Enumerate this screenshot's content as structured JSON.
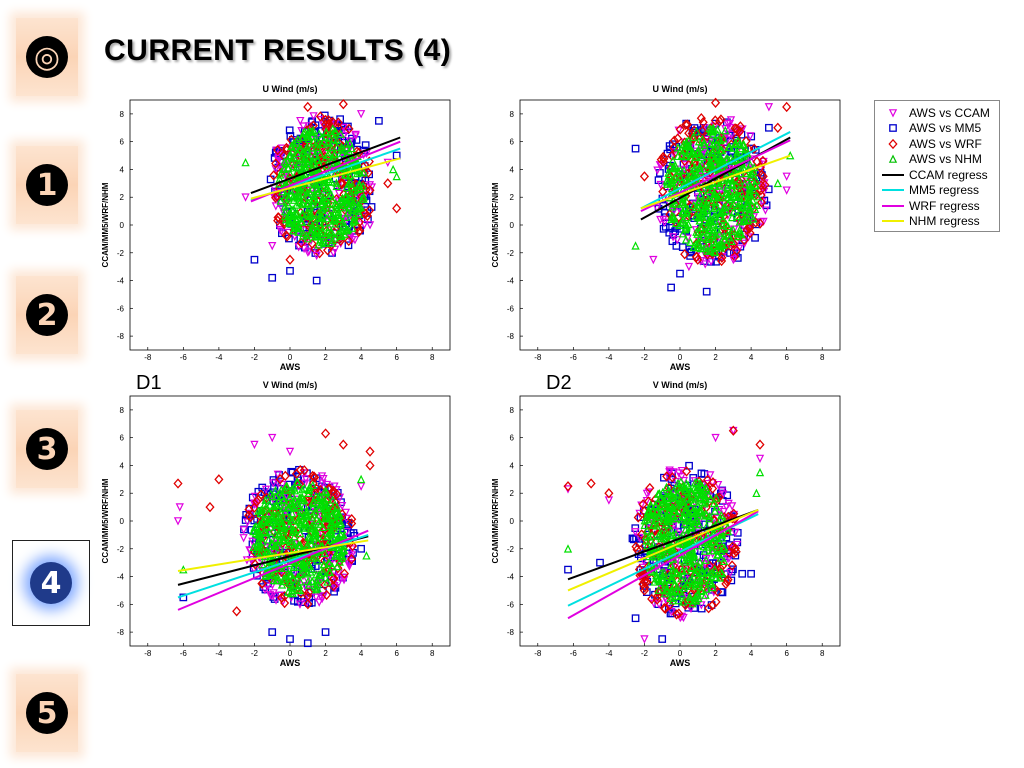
{
  "slide": {
    "title": "CURRENT RESULTS (4)",
    "nav": [
      {
        "symbol": "◎",
        "icon": "target-icon"
      },
      {
        "symbol": "1",
        "icon": "number-one-icon"
      },
      {
        "symbol": "2",
        "icon": "number-two-icon"
      },
      {
        "symbol": "3",
        "icon": "number-three-icon"
      },
      {
        "symbol": "4",
        "icon": "number-four-icon",
        "active": true
      },
      {
        "symbol": "5",
        "icon": "number-five-icon"
      }
    ],
    "panel_labels": [
      "D1",
      "D2"
    ]
  },
  "colors": {
    "ccam": "#e000e0",
    "mm5": "#0000cc",
    "wrf": "#e00000",
    "nhm": "#00e000",
    "ccam_regress": "#000000",
    "mm5_regress": "#00e0e0",
    "wrf_regress": "#e000e0",
    "nhm_regress": "#f0f000"
  },
  "legend": {
    "entries": [
      {
        "label": "AWS vs CCAM",
        "marker": "triangle-down",
        "color": "#e000e0"
      },
      {
        "label": "AWS vs MM5",
        "marker": "square",
        "color": "#0000cc"
      },
      {
        "label": "AWS vs WRF",
        "marker": "diamond",
        "color": "#e00000"
      },
      {
        "label": "AWS vs NHM",
        "marker": "triangle-up",
        "color": "#00c000"
      },
      {
        "label": "CCAM regress",
        "marker": "line",
        "color": "#000000"
      },
      {
        "label": "MM5 regress",
        "marker": "line",
        "color": "#00e0e0"
      },
      {
        "label": "WRF regress",
        "marker": "line",
        "color": "#e000e0"
      },
      {
        "label": "NHM regress",
        "marker": "line",
        "color": "#f0f000"
      }
    ]
  },
  "chart_data": [
    {
      "type": "scatter",
      "title": "U Wind (m/s)",
      "xlabel": "AWS",
      "ylabel": "CCAM/MM5/WRF/NHM",
      "xlim": [
        -9,
        9
      ],
      "ylim": [
        -9,
        9
      ],
      "xticks": [
        -8,
        -6,
        -4,
        -2,
        0,
        2,
        4,
        6,
        8
      ],
      "yticks": [
        -8,
        -6,
        -4,
        -2,
        0,
        2,
        4,
        6,
        8
      ],
      "cloud": {
        "cx": 1.8,
        "cy": 2.8,
        "rx": 3.0,
        "ry": 5.2
      },
      "series": [
        {
          "name": "AWS vs CCAM",
          "points": [
            [
              -2.5,
              2.0
            ],
            [
              -1.0,
              -1.5
            ],
            [
              1.5,
              -2.2
            ],
            [
              4.5,
              0.0
            ],
            [
              5.5,
              4.5
            ],
            [
              4.0,
              8.0
            ]
          ]
        },
        {
          "name": "AWS vs MM5",
          "points": [
            [
              -1,
              -3.8
            ],
            [
              0,
              -3.3
            ],
            [
              1.5,
              -4.0
            ],
            [
              -2,
              -2.5
            ],
            [
              6,
              5.0
            ],
            [
              5,
              7.5
            ]
          ]
        },
        {
          "name": "AWS vs WRF",
          "points": [
            [
              6,
              1.2
            ],
            [
              5.5,
              3.0
            ],
            [
              4.5,
              2.5
            ],
            [
              1,
              8.5
            ],
            [
              3,
              8.7
            ],
            [
              0,
              -2.5
            ]
          ]
        },
        {
          "name": "AWS vs NHM",
          "points": [
            [
              -2.5,
              4.5
            ],
            [
              5.8,
              4.0
            ],
            [
              6,
              3.5
            ]
          ]
        }
      ],
      "regress": [
        {
          "name": "CCAM regress",
          "x": [
            -2.2,
            6.2
          ],
          "y": [
            2.3,
            6.3
          ]
        },
        {
          "name": "MM5 regress",
          "x": [
            -2.2,
            6.2
          ],
          "y": [
            1.8,
            5.5
          ]
        },
        {
          "name": "WRF regress",
          "x": [
            -2.2,
            6.2
          ],
          "y": [
            1.7,
            6.0
          ]
        },
        {
          "name": "NHM regress",
          "x": [
            -2.2,
            6.2
          ],
          "y": [
            1.9,
            4.8
          ]
        }
      ]
    },
    {
      "type": "scatter",
      "title": "U Wind (m/s)",
      "xlabel": "AWS",
      "ylabel": "CCAM/MM5/WRF/NHM",
      "xlim": [
        -9,
        9
      ],
      "ylim": [
        -9,
        9
      ],
      "xticks": [
        -8,
        -6,
        -4,
        -2,
        0,
        2,
        4,
        6,
        8
      ],
      "yticks": [
        -8,
        -6,
        -4,
        -2,
        0,
        2,
        4,
        6,
        8
      ],
      "cloud": {
        "cx": 1.8,
        "cy": 2.5,
        "rx": 3.2,
        "ry": 5.5
      },
      "series": [
        {
          "name": "AWS vs CCAM",
          "points": [
            [
              -1.5,
              -2.5
            ],
            [
              0.5,
              -3.0
            ],
            [
              3,
              -2.5
            ],
            [
              6,
              3.5
            ],
            [
              6,
              2.5
            ],
            [
              5,
              8.5
            ]
          ]
        },
        {
          "name": "AWS vs MM5",
          "points": [
            [
              -0.5,
              -4.5
            ],
            [
              1.5,
              -4.8
            ],
            [
              -2.5,
              5.5
            ],
            [
              5,
              7.0
            ],
            [
              0,
              -3.5
            ]
          ]
        },
        {
          "name": "AWS vs WRF",
          "points": [
            [
              6,
              8.5
            ],
            [
              5.5,
              7.0
            ],
            [
              2,
              8.8
            ],
            [
              -2,
              3.5
            ],
            [
              1,
              -2.5
            ]
          ]
        },
        {
          "name": "AWS vs NHM",
          "points": [
            [
              -2.5,
              -1.5
            ],
            [
              6.2,
              5.0
            ],
            [
              5.5,
              3.0
            ]
          ]
        }
      ],
      "regress": [
        {
          "name": "CCAM regress",
          "x": [
            -2.2,
            6.2
          ],
          "y": [
            0.4,
            6.3
          ]
        },
        {
          "name": "MM5 regress",
          "x": [
            -2.2,
            6.2
          ],
          "y": [
            1.2,
            6.7
          ]
        },
        {
          "name": "WRF regress",
          "x": [
            -2.2,
            6.2
          ],
          "y": [
            1.0,
            6.1
          ]
        },
        {
          "name": "NHM regress",
          "x": [
            -2.2,
            6.2
          ],
          "y": [
            1.2,
            5.0
          ]
        }
      ]
    },
    {
      "type": "scatter",
      "title": "V Wind (m/s)",
      "xlabel": "AWS",
      "ylabel": "CCAM/MM5/WRF/NHM",
      "xlim": [
        -9,
        9
      ],
      "ylim": [
        -9,
        9
      ],
      "xticks": [
        -8,
        -6,
        -4,
        -2,
        0,
        2,
        4,
        6,
        8
      ],
      "yticks": [
        -8,
        -6,
        -4,
        -2,
        0,
        2,
        4,
        6,
        8
      ],
      "cloud": {
        "cx": 0.5,
        "cy": -1.2,
        "rx": 3.2,
        "ry": 5.0
      },
      "series": [
        {
          "name": "AWS vs CCAM",
          "points": [
            [
              -6.2,
              1.0
            ],
            [
              -6.3,
              0.0
            ],
            [
              -2,
              5.5
            ],
            [
              -1,
              6.0
            ],
            [
              0,
              5.0
            ],
            [
              4,
              2.5
            ]
          ]
        },
        {
          "name": "AWS vs MM5",
          "points": [
            [
              -6,
              -5.5
            ],
            [
              0,
              -8.5
            ],
            [
              2,
              -8.0
            ],
            [
              4,
              -2.0
            ],
            [
              -1,
              -8.0
            ],
            [
              1,
              -8.8
            ]
          ]
        },
        {
          "name": "AWS vs WRF",
          "points": [
            [
              -6.3,
              2.7
            ],
            [
              -4,
              3.0
            ],
            [
              -4.5,
              1.0
            ],
            [
              2,
              6.3
            ],
            [
              3,
              5.5
            ],
            [
              4.5,
              5.0
            ],
            [
              4.5,
              4.0
            ],
            [
              -3,
              -6.5
            ]
          ]
        },
        {
          "name": "AWS vs NHM",
          "points": [
            [
              -6,
              -3.5
            ],
            [
              4.3,
              -2.5
            ],
            [
              4.0,
              3.0
            ]
          ]
        }
      ],
      "regress": [
        {
          "name": "CCAM regress",
          "x": [
            -6.3,
            4.4
          ],
          "y": [
            -4.6,
            -1.1
          ]
        },
        {
          "name": "MM5 regress",
          "x": [
            -6.3,
            4.4
          ],
          "y": [
            -5.5,
            -1.0
          ]
        },
        {
          "name": "WRF regress",
          "x": [
            -6.3,
            4.4
          ],
          "y": [
            -6.4,
            -0.7
          ]
        },
        {
          "name": "NHM regress",
          "x": [
            -6.3,
            4.4
          ],
          "y": [
            -3.6,
            -1.4
          ]
        }
      ]
    },
    {
      "type": "scatter",
      "title": "V Wind (m/s)",
      "xlabel": "AWS",
      "ylabel": "CCAM/MM5/WRF/NHM",
      "xlim": [
        -9,
        9
      ],
      "ylim": [
        -9,
        9
      ],
      "xticks": [
        -8,
        -6,
        -4,
        -2,
        0,
        2,
        4,
        6,
        8
      ],
      "yticks": [
        -8,
        -6,
        -4,
        -2,
        0,
        2,
        4,
        6,
        8
      ],
      "cloud": {
        "cx": 0.3,
        "cy": -1.5,
        "rx": 3.0,
        "ry": 5.5
      },
      "series": [
        {
          "name": "AWS vs CCAM",
          "points": [
            [
              -6.3,
              2.3
            ],
            [
              -4,
              1.5
            ],
            [
              -2,
              -8.5
            ],
            [
              2,
              6.0
            ],
            [
              3,
              6.5
            ],
            [
              4.5,
              4.5
            ]
          ]
        },
        {
          "name": "AWS vs MM5",
          "points": [
            [
              -6.3,
              -3.5
            ],
            [
              -4.5,
              -3.0
            ],
            [
              3.5,
              -3.8
            ],
            [
              4,
              -3.8
            ],
            [
              -1,
              -8.5
            ],
            [
              -2.5,
              -7.0
            ]
          ]
        },
        {
          "name": "AWS vs WRF",
          "points": [
            [
              -6.3,
              2.5
            ],
            [
              -5,
              2.7
            ],
            [
              -4,
              2.0
            ],
            [
              3,
              6.5
            ],
            [
              4.5,
              5.5
            ],
            [
              -2,
              -5.0
            ]
          ]
        },
        {
          "name": "AWS vs NHM",
          "points": [
            [
              -6.3,
              -2.0
            ],
            [
              4.5,
              3.5
            ],
            [
              4.3,
              2.0
            ]
          ]
        }
      ],
      "regress": [
        {
          "name": "CCAM regress",
          "x": [
            -6.3,
            4.4
          ],
          "y": [
            -4.2,
            0.8
          ]
        },
        {
          "name": "MM5 regress",
          "x": [
            -6.3,
            4.4
          ],
          "y": [
            -6.1,
            0.5
          ]
        },
        {
          "name": "WRF regress",
          "x": [
            -6.3,
            4.4
          ],
          "y": [
            -7.0,
            0.7
          ]
        },
        {
          "name": "NHM regress",
          "x": [
            -6.3,
            4.4
          ],
          "y": [
            -5.0,
            0.8
          ]
        }
      ]
    }
  ]
}
